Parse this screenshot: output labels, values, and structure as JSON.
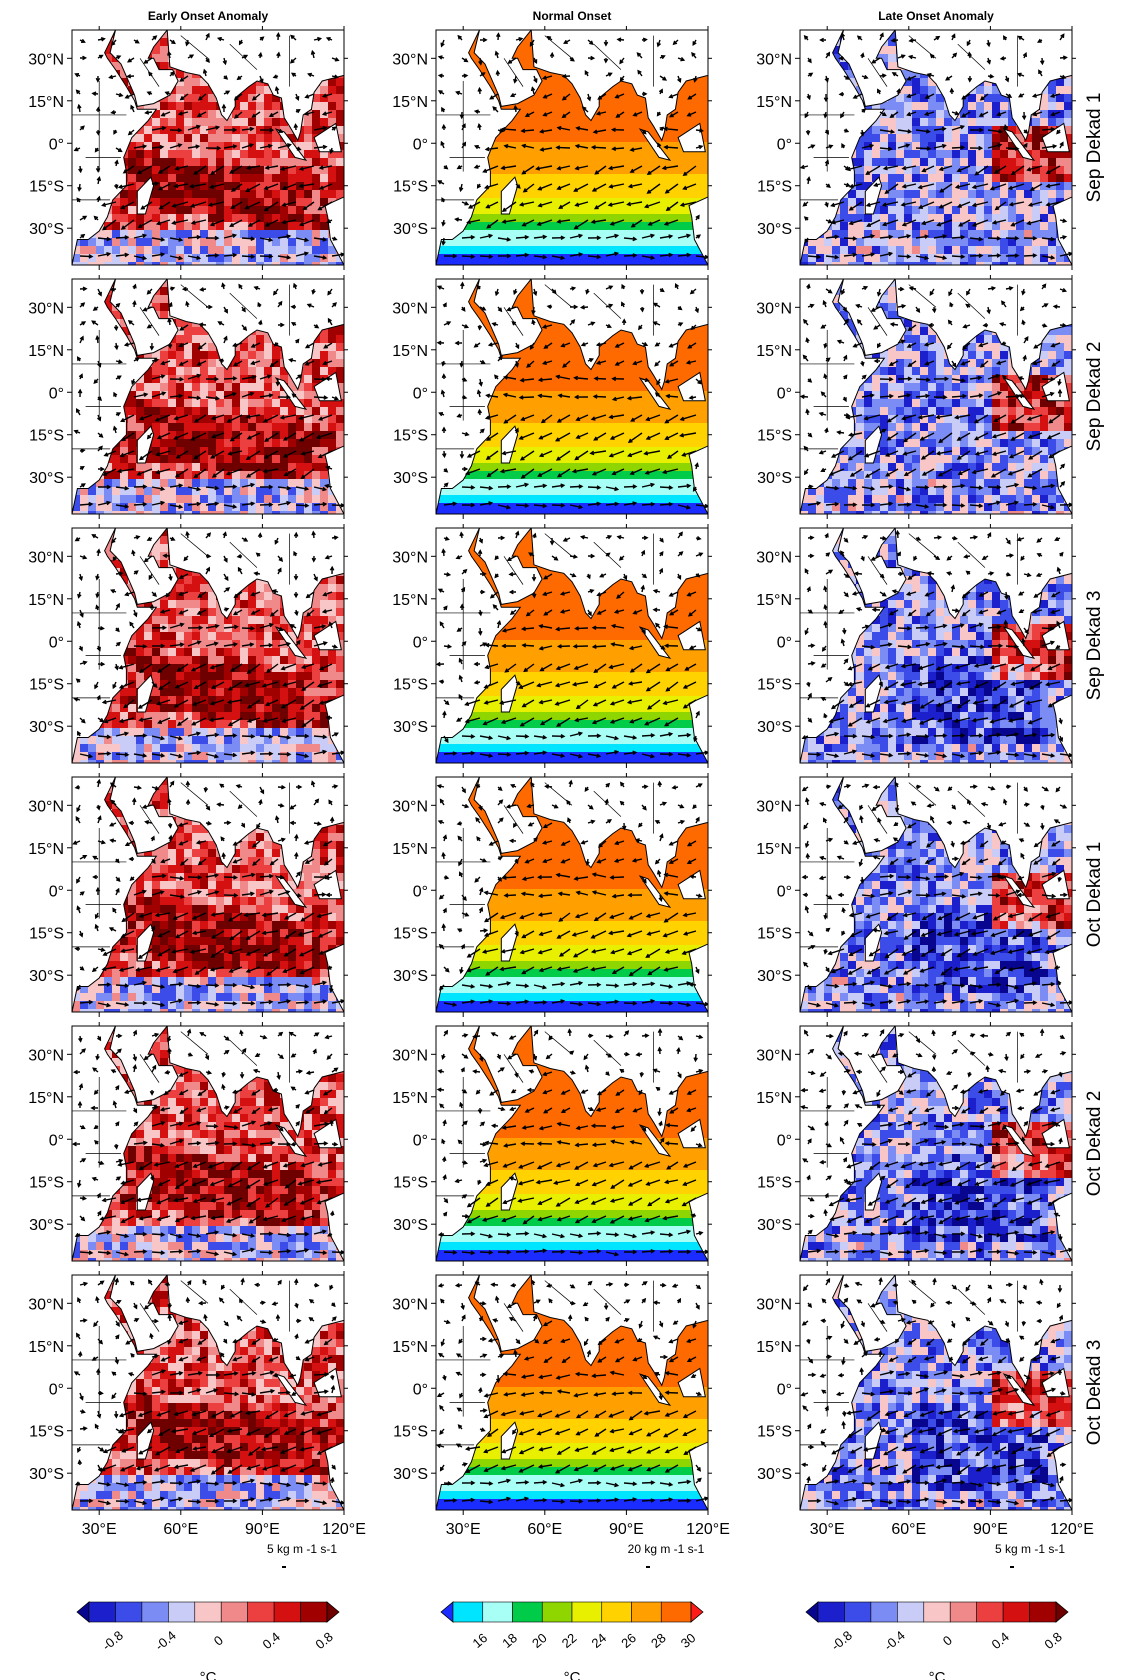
{
  "figure": {
    "columns": [
      {
        "title": "Early Onset Anomaly",
        "key": "anomaly"
      },
      {
        "title": "Normal Onset",
        "key": "clim"
      },
      {
        "title": "Late Onset Anomaly",
        "key": "anomaly"
      }
    ],
    "rows": [
      "Sep Dekad 1",
      "Sep Dekad 2",
      "Sep Dekad 3",
      "Oct Dekad 1",
      "Oct Dekad 2",
      "Oct Dekad 3"
    ],
    "lat_labels": [
      "30°N",
      "15°N",
      "0°",
      "15°S",
      "30°S"
    ],
    "lon_labels": [
      "30°E",
      "60°E",
      "90°E",
      "120°E"
    ],
    "reference_vectors": [
      "5 kg m -1 s-1",
      "20 kg m -1 s-1",
      "5 kg m -1 s-1"
    ],
    "colorbars": [
      {
        "unit": "°C",
        "tick_labels": [
          "-0.8",
          "-0.4",
          "0",
          "0.4",
          "0.8"
        ],
        "colors": [
          "#08068f",
          "#1b1fcc",
          "#3b4ce9",
          "#7c8cf5",
          "#c8ccf7",
          "#f8c6c6",
          "#f08a8a",
          "#ec3f3f",
          "#d41010",
          "#a00000",
          "#6f0000"
        ]
      },
      {
        "unit": "°C",
        "tick_labels": [
          "16",
          "18",
          "20",
          "22",
          "24",
          "26",
          "28",
          "30"
        ],
        "colors": [
          "#1a2cff",
          "#00e5ff",
          "#a8fff6",
          "#00cc4a",
          "#8fd600",
          "#e8f000",
          "#ffd200",
          "#ffa000",
          "#ff6a00",
          "#ff1a1a"
        ]
      },
      {
        "unit": "°C",
        "tick_labels": [
          "-0.8",
          "-0.4",
          "0",
          "0.4",
          "0.8"
        ],
        "colors": [
          "#08068f",
          "#1b1fcc",
          "#3b4ce9",
          "#7c8cf5",
          "#c8ccf7",
          "#f8c6c6",
          "#f08a8a",
          "#ec3f3f",
          "#d41010",
          "#a00000",
          "#6f0000"
        ]
      }
    ]
  }
}
